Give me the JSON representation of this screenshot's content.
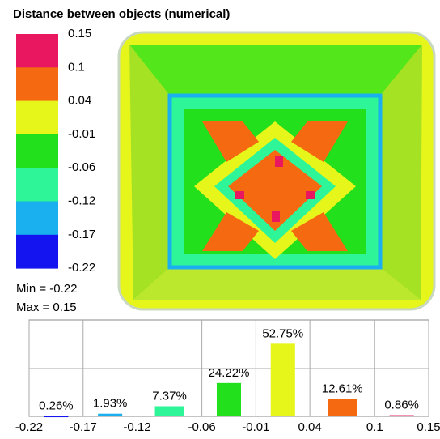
{
  "color_scale": {
    "title": "Distance between objects (numerical)",
    "ticks": [
      0.15,
      0.1,
      0.04,
      -0.01,
      -0.06,
      -0.12,
      -0.17,
      -0.22
    ],
    "colors": [
      "#e8175f",
      "#f56a10",
      "#e6f51a",
      "#22e01c",
      "#2ef598",
      "#1ab0f0",
      "#1414f0"
    ],
    "min_label": "Min = -0.22",
    "max_label": "Max =  0.15"
  },
  "chart_data": {
    "type": "histogram",
    "bins": [
      -0.22,
      -0.17,
      -0.12,
      -0.06,
      -0.01,
      0.04,
      0.1,
      0.15
    ],
    "values": [
      0.26,
      1.93,
      7.37,
      24.22,
      52.75,
      12.61,
      0.86
    ],
    "value_labels": [
      "0.26%",
      "1.93%",
      "7.37%",
      "24.22%",
      "52.75%",
      "12.61%",
      "0.86%"
    ],
    "colors": [
      "#1414f0",
      "#1ab0f0",
      "#2ef598",
      "#22e01c",
      "#e6f51a",
      "#f56a10",
      "#e8175f"
    ],
    "xlim": [
      -0.22,
      0.15
    ],
    "ylim": [
      0,
      70
    ]
  }
}
